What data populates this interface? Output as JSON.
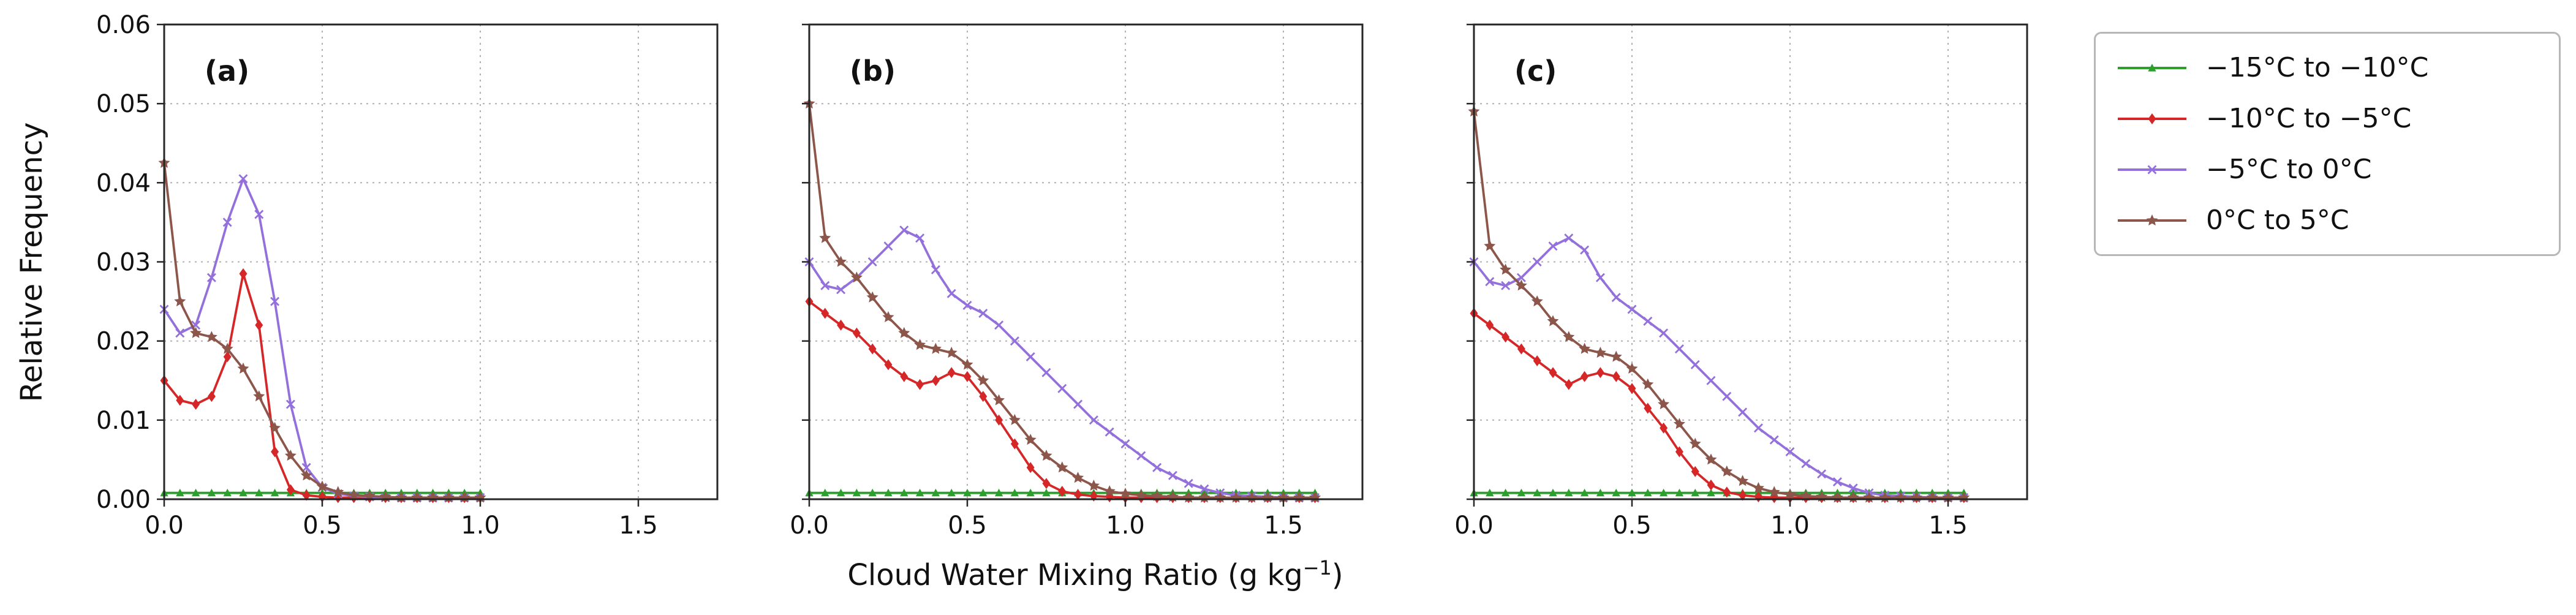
{
  "figure": {
    "ylabel": "Relative Frequency",
    "xlabel": {
      "prefix": "Cloud Water Mixing Ratio (g kg",
      "sup": "−1",
      "suffix": ")"
    },
    "background": "#ffffff",
    "grid_color": "#b0b0b0",
    "spine_color": "#262626"
  },
  "axes": {
    "xlim": [
      0,
      1.75
    ],
    "ylim": [
      0,
      0.06
    ],
    "xticks": [
      "0.0",
      "0.5",
      "1.0",
      "1.5"
    ],
    "yticks": [
      "0.00",
      "0.01",
      "0.02",
      "0.03",
      "0.04",
      "0.05",
      "0.06"
    ],
    "grid": "dotted"
  },
  "legend": {
    "position": "outside-upper-right",
    "entries": [
      {
        "label": "−15°C to −10°C",
        "color": "#2ca02c",
        "marker": "triangle"
      },
      {
        "label": "−10°C to −5°C",
        "color": "#d62728",
        "marker": "diamond"
      },
      {
        "label": "−5°C to 0°C",
        "color": "#9370db",
        "marker": "x"
      },
      {
        "label": "0°C to 5°C",
        "color": "#8c564b",
        "marker": "star"
      }
    ]
  },
  "chart_data": [
    {
      "type": "line",
      "panel_label": "(a)",
      "x_start": 0,
      "x_step": 0.05,
      "series": [
        {
          "legend_index": 0,
          "values": [
            0.0008,
            0.0008,
            0.0008,
            0.0008,
            0.0008,
            0.0008,
            0.0008,
            0.0008,
            0.0008,
            0.0008,
            0.0008,
            0.0008,
            0.0008,
            0.0008,
            0.0008,
            0.0008,
            0.0008,
            0.0008,
            0.0008,
            0.0008,
            0.0008
          ]
        },
        {
          "legend_index": 1,
          "values": [
            0.015,
            0.0125,
            0.012,
            0.013,
            0.018,
            0.0285,
            0.022,
            0.006,
            0.0012,
            0.0005,
            0.0003,
            0.0002,
            0.0002,
            0.0002,
            0.0002,
            0.0002,
            0.0002,
            0.0002,
            0.0002,
            0.0002,
            0.0002
          ]
        },
        {
          "legend_index": 2,
          "values": [
            0.024,
            0.021,
            0.022,
            0.028,
            0.035,
            0.0405,
            0.036,
            0.025,
            0.012,
            0.004,
            0.0015,
            0.0007,
            0.0004,
            0.0003,
            0.0002,
            0.0002,
            0.0002,
            0.0002,
            0.0002,
            0.0002,
            0.0002
          ]
        },
        {
          "legend_index": 3,
          "values": [
            0.0425,
            0.025,
            0.021,
            0.0205,
            0.019,
            0.0165,
            0.013,
            0.009,
            0.0055,
            0.003,
            0.0016,
            0.0009,
            0.0005,
            0.0004,
            0.0003,
            0.0002,
            0.0002,
            0.0002,
            0.0002,
            0.0002,
            0.0002
          ]
        }
      ]
    },
    {
      "type": "line",
      "panel_label": "(b)",
      "x_start": 0,
      "x_step": 0.05,
      "series": [
        {
          "legend_index": 0,
          "values": [
            0.0008,
            0.0008,
            0.0008,
            0.0008,
            0.0008,
            0.0008,
            0.0008,
            0.0008,
            0.0008,
            0.0008,
            0.0008,
            0.0008,
            0.0008,
            0.0008,
            0.0008,
            0.0008,
            0.0008,
            0.0008,
            0.0008,
            0.0008,
            0.0008,
            0.0008,
            0.0008,
            0.0008,
            0.0008,
            0.0008,
            0.0008,
            0.0008,
            0.0008,
            0.0008,
            0.0008,
            0.0008,
            0.0008
          ]
        },
        {
          "legend_index": 1,
          "values": [
            0.025,
            0.0235,
            0.022,
            0.021,
            0.019,
            0.017,
            0.0155,
            0.0145,
            0.015,
            0.016,
            0.0155,
            0.013,
            0.01,
            0.007,
            0.004,
            0.002,
            0.001,
            0.0006,
            0.0004,
            0.0003,
            0.0002,
            0.0002,
            0.0002,
            0.0002,
            0.0002,
            0.0002,
            0.0002,
            0.0002,
            0.0002,
            0.0002,
            0.0002,
            0.0002,
            0.0002
          ]
        },
        {
          "legend_index": 2,
          "values": [
            0.03,
            0.027,
            0.0265,
            0.028,
            0.03,
            0.032,
            0.034,
            0.033,
            0.029,
            0.026,
            0.0245,
            0.0235,
            0.022,
            0.02,
            0.018,
            0.016,
            0.014,
            0.012,
            0.01,
            0.0085,
            0.007,
            0.0055,
            0.004,
            0.003,
            0.002,
            0.0013,
            0.0008,
            0.0005,
            0.0004,
            0.0003,
            0.0002,
            0.0002,
            0.0002
          ]
        },
        {
          "legend_index": 3,
          "values": [
            0.05,
            0.033,
            0.03,
            0.028,
            0.0255,
            0.023,
            0.021,
            0.0195,
            0.019,
            0.0185,
            0.017,
            0.015,
            0.0125,
            0.01,
            0.0075,
            0.0055,
            0.004,
            0.0027,
            0.0017,
            0.001,
            0.0007,
            0.0005,
            0.0004,
            0.0003,
            0.0002,
            0.0002,
            0.0002,
            0.0002,
            0.0002,
            0.0002,
            0.0002,
            0.0002,
            0.0002
          ]
        }
      ]
    },
    {
      "type": "line",
      "panel_label": "(c)",
      "x_start": 0,
      "x_step": 0.05,
      "series": [
        {
          "legend_index": 0,
          "values": [
            0.0008,
            0.0008,
            0.0008,
            0.0008,
            0.0008,
            0.0008,
            0.0008,
            0.0008,
            0.0008,
            0.0008,
            0.0008,
            0.0008,
            0.0008,
            0.0008,
            0.0008,
            0.0008,
            0.0008,
            0.0008,
            0.0008,
            0.0008,
            0.0008,
            0.0008,
            0.0008,
            0.0008,
            0.0008,
            0.0008,
            0.0008,
            0.0008,
            0.0008,
            0.0008,
            0.0008,
            0.0008
          ]
        },
        {
          "legend_index": 1,
          "values": [
            0.0235,
            0.022,
            0.0205,
            0.019,
            0.0175,
            0.016,
            0.0145,
            0.0155,
            0.016,
            0.0155,
            0.014,
            0.0115,
            0.009,
            0.006,
            0.0035,
            0.0018,
            0.0009,
            0.0005,
            0.0003,
            0.0002,
            0.0002,
            0.0002,
            0.0002,
            0.0002,
            0.0002,
            0.0002,
            0.0002,
            0.0002,
            0.0002,
            0.0002,
            0.0002,
            0.0002
          ]
        },
        {
          "legend_index": 2,
          "values": [
            0.03,
            0.0275,
            0.027,
            0.028,
            0.03,
            0.032,
            0.033,
            0.0315,
            0.028,
            0.0255,
            0.024,
            0.0225,
            0.021,
            0.019,
            0.017,
            0.015,
            0.013,
            0.011,
            0.009,
            0.0075,
            0.006,
            0.0045,
            0.0032,
            0.0022,
            0.0014,
            0.0008,
            0.0005,
            0.0004,
            0.0003,
            0.0002,
            0.0002,
            0.0002
          ]
        },
        {
          "legend_index": 3,
          "values": [
            0.049,
            0.032,
            0.029,
            0.027,
            0.025,
            0.0225,
            0.0205,
            0.019,
            0.0185,
            0.018,
            0.0165,
            0.0145,
            0.012,
            0.0095,
            0.007,
            0.005,
            0.0035,
            0.0023,
            0.0014,
            0.0009,
            0.0006,
            0.0004,
            0.0003,
            0.0002,
            0.0002,
            0.0002,
            0.0002,
            0.0002,
            0.0002,
            0.0002,
            0.0002,
            0.0002
          ]
        }
      ]
    }
  ]
}
